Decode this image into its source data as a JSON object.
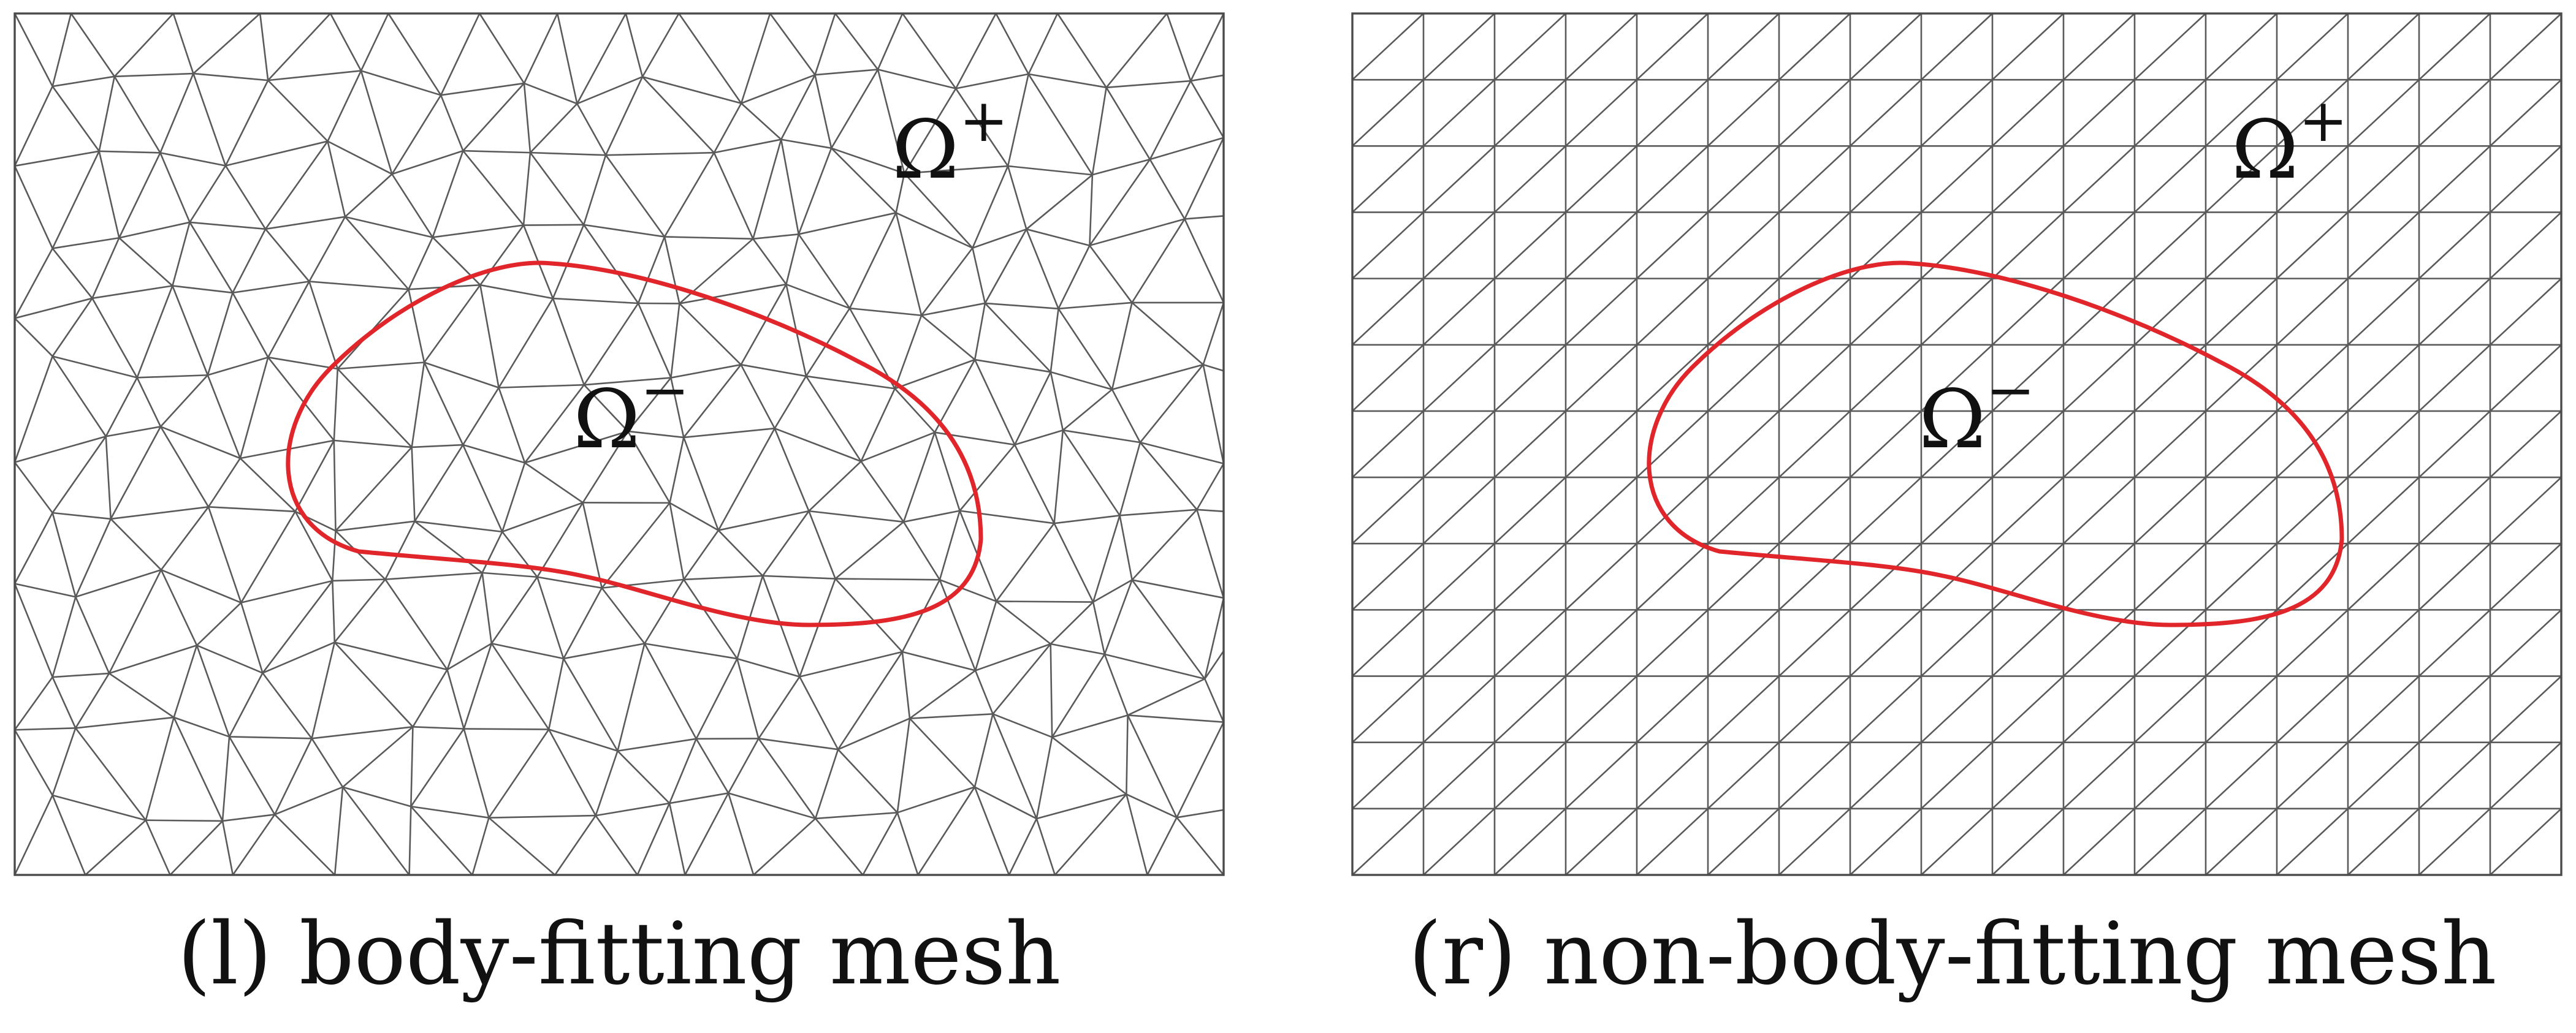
{
  "colors": {
    "mesh": "#5a5a5a",
    "interface": "#e0262b",
    "text": "#111111",
    "background": "#ffffff"
  },
  "panels": [
    {
      "id": "left",
      "mesh_type": "unstructured triangular",
      "caption": "(l) body-fitting mesh",
      "outer_label": {
        "base": "Ω",
        "sup": "+"
      },
      "inner_label": {
        "base": "Ω",
        "sup": "−"
      }
    },
    {
      "id": "right",
      "mesh_type": "structured right-triangle",
      "caption": "(r) non-body-fitting mesh",
      "outer_label": {
        "base": "Ω",
        "sup": "+"
      },
      "inner_label": {
        "base": "Ω",
        "sup": "−"
      }
    }
  ]
}
